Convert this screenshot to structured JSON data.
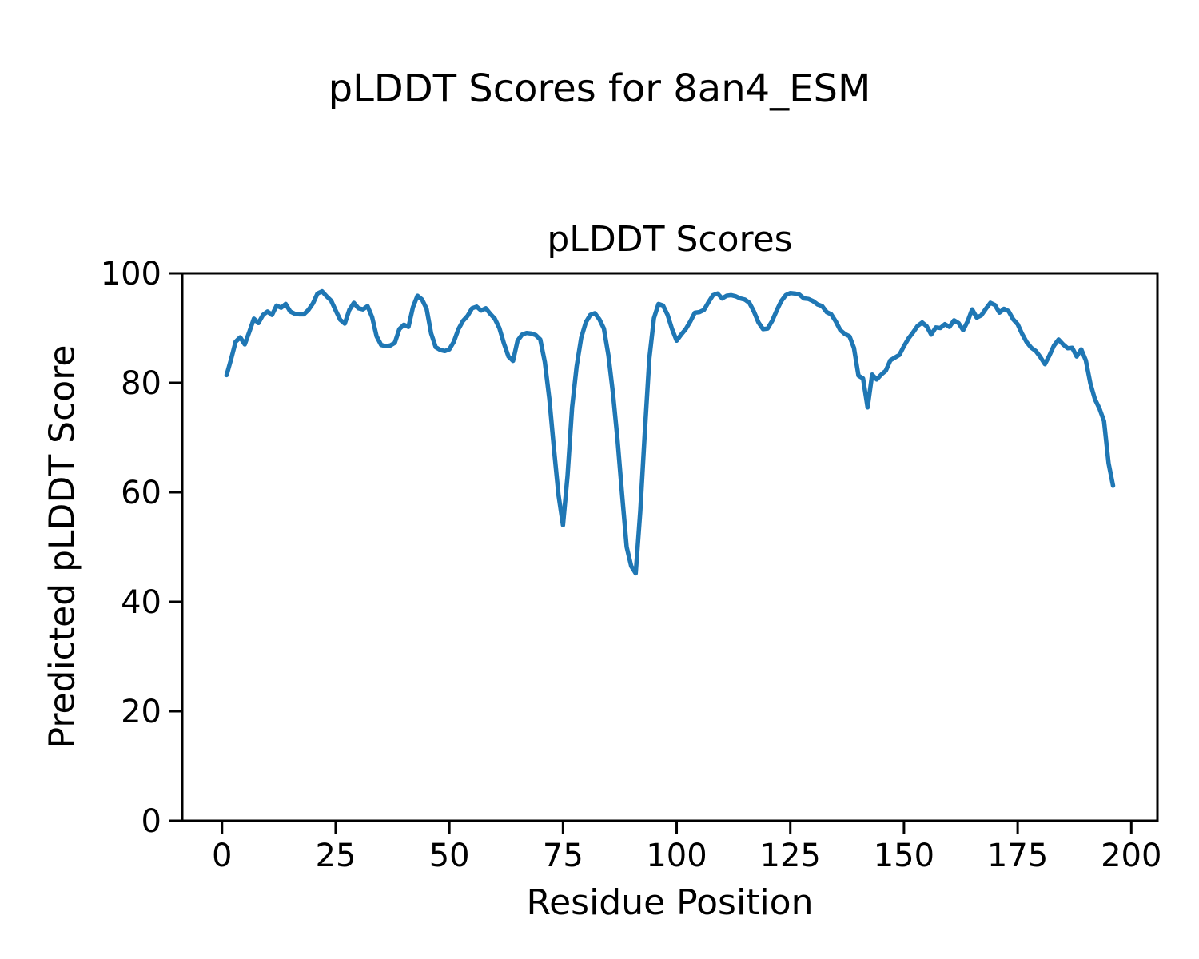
{
  "figure": {
    "suptitle": "pLDDT Scores for 8an4_ESM",
    "background_color": "#ffffff",
    "text_color": "#000000"
  },
  "chart_data": {
    "type": "line",
    "title": "pLDDT Scores",
    "xlabel": "Residue Position",
    "ylabel": "Predicted pLDDT Score",
    "line_color": "#1f77b4",
    "line_width": 5.5,
    "axis_color": "#000000",
    "grid": false,
    "legend": false,
    "xlim": [
      -8.75,
      205.75
    ],
    "ylim": [
      0,
      100
    ],
    "xticks": [
      0,
      25,
      50,
      75,
      100,
      125,
      150,
      175,
      200
    ],
    "yticks": [
      0,
      20,
      40,
      60,
      80,
      100
    ],
    "series": [
      {
        "name": "pLDDT",
        "x_start": 1,
        "values": [
          81.4,
          84.3,
          87.5,
          88.3,
          87.0,
          89.3,
          91.7,
          90.9,
          92.4,
          93.0,
          92.4,
          94.1,
          93.7,
          94.4,
          93.0,
          92.6,
          92.5,
          92.5,
          93.3,
          94.5,
          96.3,
          96.7,
          95.8,
          95.0,
          93.2,
          91.5,
          90.8,
          93.3,
          94.6,
          93.6,
          93.4,
          94.0,
          92.0,
          88.5,
          86.9,
          86.7,
          86.8,
          87.3,
          89.8,
          90.6,
          90.2,
          93.8,
          95.9,
          95.2,
          93.5,
          89.0,
          86.5,
          86.0,
          85.8,
          86.1,
          87.5,
          89.8,
          91.3,
          92.2,
          93.6,
          93.9,
          93.2,
          93.6,
          92.6,
          91.7,
          90.0,
          87.2,
          84.8,
          84.0,
          87.7,
          88.8,
          89.1,
          89.0,
          88.7,
          87.9,
          83.8,
          77.0,
          68.0,
          59.5,
          54.0,
          63.0,
          75.5,
          83.0,
          88.2,
          91.0,
          92.4,
          92.7,
          91.6,
          89.9,
          85.0,
          78.0,
          69.5,
          59.5,
          50.0,
          46.5,
          45.2,
          56.5,
          71.0,
          84.5,
          91.8,
          94.4,
          94.1,
          92.4,
          89.8,
          87.7,
          88.8,
          89.8,
          91.2,
          92.8,
          92.9,
          93.3,
          94.7,
          96.0,
          96.3,
          95.4,
          95.9,
          96.0,
          95.8,
          95.4,
          95.2,
          94.6,
          93.0,
          91.0,
          89.8,
          89.9,
          91.3,
          93.2,
          94.9,
          96.0,
          96.4,
          96.3,
          96.1,
          95.4,
          95.3,
          94.9,
          94.3,
          94.0,
          92.9,
          92.5,
          91.2,
          89.6,
          88.9,
          88.5,
          86.4,
          81.3,
          80.8,
          75.5,
          81.5,
          80.6,
          81.5,
          82.2,
          84.1,
          84.6,
          85.1,
          86.7,
          88.1,
          89.2,
          90.4,
          91.0,
          90.3,
          88.8,
          90.1,
          90.0,
          90.7,
          90.2,
          91.4,
          90.9,
          89.6,
          91.2,
          93.4,
          91.9,
          92.3,
          93.5,
          94.6,
          94.2,
          92.8,
          93.5,
          93.1,
          91.6,
          90.7,
          88.9,
          87.4,
          86.4,
          85.8,
          84.7,
          83.4,
          85.0,
          86.8,
          87.9,
          87.0,
          86.3,
          86.4,
          84.8,
          86.1,
          84.1,
          79.9,
          77.0,
          75.3,
          73.0,
          65.3,
          61.2
        ]
      }
    ]
  }
}
